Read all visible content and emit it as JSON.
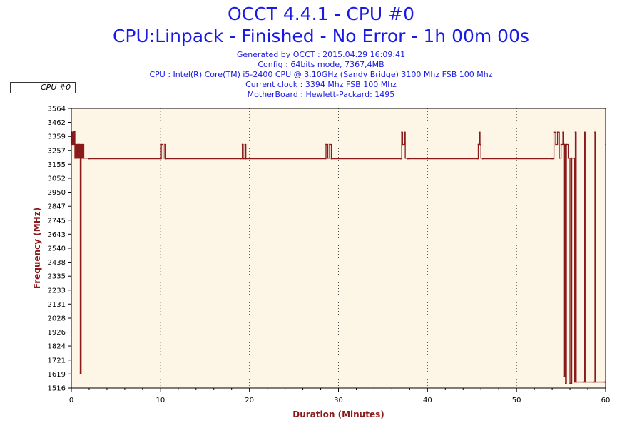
{
  "header": {
    "title": "OCCT 4.4.1 - CPU #0",
    "subtitle": "CPU:Linpack - Finished - No Error - 1h 00m 00s",
    "info": [
      "Generated by OCCT : 2015.04.29 16:09:41",
      "Config : 64bits mode, 7367,4MB",
      "CPU : Intel(R) Core(TM) i5-2400 CPU @ 3.10GHz (Sandy Bridge) 3100 Mhz FSB 100 Mhz",
      "Current clock : 3394 Mhz FSB 100 Mhz",
      "MotherBoard : Hewlett-Packard: 1495"
    ]
  },
  "legend": {
    "label": "CPU #0"
  },
  "colors": {
    "series": "#8b1a1a",
    "plot_background": "#fdf5e6",
    "title": "#1a1ae6",
    "axis_title": "#8b1a1a"
  },
  "chart_data": {
    "type": "line",
    "xlabel": "Duration (Minutes)",
    "ylabel": "Frequency (MHz)",
    "xlim": [
      0,
      60
    ],
    "ylim": [
      1516,
      3564
    ],
    "x_ticks": [
      0,
      10,
      20,
      30,
      40,
      50,
      60
    ],
    "y_ticks": [
      1516,
      1619,
      1721,
      1824,
      1926,
      2028,
      2131,
      2233,
      2335,
      2438,
      2540,
      2643,
      2745,
      2847,
      2950,
      3052,
      3155,
      3257,
      3359,
      3462,
      3564
    ],
    "grid": "vertical-dotted",
    "legend_position": "top-left",
    "series": [
      {
        "name": "CPU #0",
        "points": [
          [
            0.0,
            3300
          ],
          [
            0.1,
            3390
          ],
          [
            0.2,
            3300
          ],
          [
            0.3,
            3395
          ],
          [
            0.4,
            3200
          ],
          [
            0.5,
            3300
          ],
          [
            0.6,
            3200
          ],
          [
            0.7,
            3300
          ],
          [
            0.8,
            3200
          ],
          [
            0.9,
            3300
          ],
          [
            1.0,
            1620
          ],
          [
            1.1,
            3300
          ],
          [
            1.2,
            3200
          ],
          [
            1.3,
            3300
          ],
          [
            1.4,
            3200
          ],
          [
            2.0,
            3195
          ],
          [
            10.0,
            3195
          ],
          [
            10.1,
            3300
          ],
          [
            10.3,
            3200
          ],
          [
            10.5,
            3300
          ],
          [
            10.6,
            3195
          ],
          [
            19.0,
            3195
          ],
          [
            19.2,
            3300
          ],
          [
            19.3,
            3195
          ],
          [
            19.5,
            3300
          ],
          [
            19.6,
            3195
          ],
          [
            28.5,
            3195
          ],
          [
            28.6,
            3300
          ],
          [
            28.8,
            3200
          ],
          [
            29.0,
            3300
          ],
          [
            29.2,
            3195
          ],
          [
            37.0,
            3195
          ],
          [
            37.1,
            3390
          ],
          [
            37.2,
            3300
          ],
          [
            37.4,
            3390
          ],
          [
            37.5,
            3200
          ],
          [
            37.8,
            3195
          ],
          [
            45.6,
            3195
          ],
          [
            45.7,
            3300
          ],
          [
            45.8,
            3390
          ],
          [
            45.9,
            3300
          ],
          [
            46.0,
            3200
          ],
          [
            46.2,
            3195
          ],
          [
            54.0,
            3195
          ],
          [
            54.2,
            3390
          ],
          [
            54.4,
            3300
          ],
          [
            54.6,
            3390
          ],
          [
            54.8,
            3200
          ],
          [
            55.0,
            3300
          ],
          [
            55.2,
            3390
          ],
          [
            55.3,
            1600
          ],
          [
            55.4,
            3300
          ],
          [
            55.5,
            1550
          ],
          [
            55.6,
            3300
          ],
          [
            55.8,
            3200
          ],
          [
            56.0,
            1550
          ],
          [
            56.2,
            3200
          ],
          [
            56.5,
            1560
          ],
          [
            56.6,
            3390
          ],
          [
            56.7,
            1560
          ],
          [
            57.5,
            1560
          ],
          [
            57.6,
            3390
          ],
          [
            57.7,
            1560
          ],
          [
            58.7,
            1560
          ],
          [
            58.8,
            3390
          ],
          [
            58.9,
            1560
          ],
          [
            59.9,
            1560
          ],
          [
            60.0,
            3300
          ]
        ]
      }
    ]
  }
}
